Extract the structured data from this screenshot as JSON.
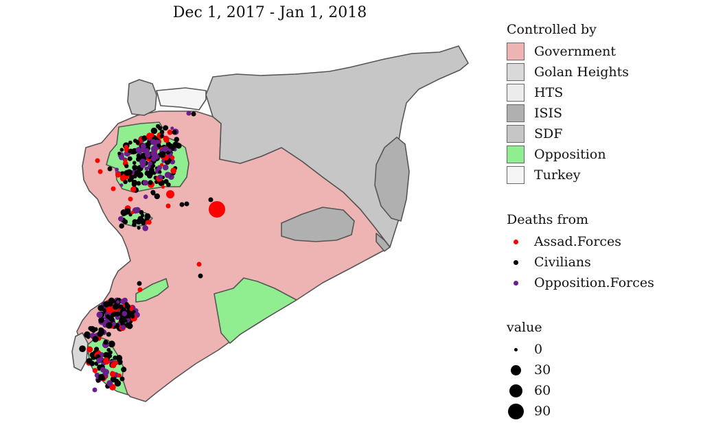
{
  "title": "Dec 1, 2017 - Jan 1, 2018",
  "control_legend": {
    "title": "Controlled by",
    "items": [
      {
        "label": "Government",
        "color": "#eeb3b3"
      },
      {
        "label": "Golan Heights",
        "color": "#d9d9d9"
      },
      {
        "label": "HTS",
        "color": "#ececec"
      },
      {
        "label": "ISIS",
        "color": "#b0b0b0"
      },
      {
        "label": "SDF",
        "color": "#c6c6c6"
      },
      {
        "label": "Opposition",
        "color": "#90ee90"
      },
      {
        "label": "Turkey",
        "color": "#f5f5f5"
      }
    ]
  },
  "deaths_legend": {
    "title": "Deaths from",
    "items": [
      {
        "label": "Assad.Forces",
        "color": "#ff0000"
      },
      {
        "label": "Civilians",
        "color": "#000000"
      },
      {
        "label": "Opposition.Forces",
        "color": "#6a1f8a"
      }
    ]
  },
  "value_legend": {
    "title": "value",
    "items": [
      {
        "label": "0",
        "value": 0
      },
      {
        "label": "30",
        "value": 30
      },
      {
        "label": "60",
        "value": 60
      },
      {
        "label": "90",
        "value": 90
      }
    ]
  }
}
